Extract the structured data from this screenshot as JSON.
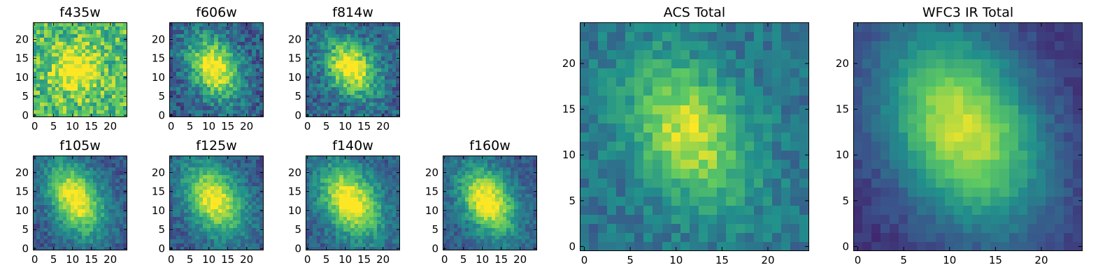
{
  "figure": {
    "background": "#ffffff",
    "colormap": [
      "#440154",
      "#3b528b",
      "#21918c",
      "#5ec962",
      "#fde725"
    ]
  },
  "chart_data": [
    {
      "type": "heatmap",
      "title": "f435w",
      "size": 25,
      "xticks": [
        0,
        5,
        10,
        15,
        20
      ],
      "yticks": [
        0,
        5,
        10,
        15,
        20
      ],
      "xlim": [
        -0.5,
        24.5
      ],
      "ylim": [
        -0.5,
        24.5
      ],
      "peak": [
        11,
        12
      ],
      "sigma": [
        4,
        4
      ],
      "rho": 0,
      "amp": 0.45,
      "bg": 0.7,
      "noise": 0.45,
      "seed": 11
    },
    {
      "type": "heatmap",
      "title": "f606w",
      "size": 25,
      "xticks": [
        0,
        5,
        10,
        15,
        20
      ],
      "yticks": [
        0,
        5,
        10,
        15,
        20
      ],
      "xlim": [
        -0.5,
        24.5
      ],
      "ylim": [
        -0.5,
        24.5
      ],
      "peak": [
        11.5,
        12.5
      ],
      "sigma": [
        4.5,
        5.5
      ],
      "rho": -0.3,
      "amp": 0.75,
      "bg": 0.3,
      "noise": 0.32,
      "seed": 23
    },
    {
      "type": "heatmap",
      "title": "f814w",
      "size": 25,
      "xticks": [
        0,
        5,
        10,
        15,
        20
      ],
      "yticks": [
        0,
        5,
        10,
        15,
        20
      ],
      "xlim": [
        -0.5,
        24.5
      ],
      "ylim": [
        -0.5,
        24.5
      ],
      "peak": [
        11.5,
        12.5
      ],
      "sigma": [
        4.5,
        5
      ],
      "rho": -0.3,
      "amp": 0.75,
      "bg": 0.32,
      "noise": 0.32,
      "seed": 37
    },
    {
      "type": "heatmap",
      "title": "f105w",
      "size": 25,
      "xticks": [
        0,
        5,
        10,
        15,
        20
      ],
      "yticks": [
        0,
        5,
        10,
        15,
        20
      ],
      "xlim": [
        -0.5,
        24.5
      ],
      "ylim": [
        -0.5,
        24.5
      ],
      "peak": [
        11,
        13
      ],
      "sigma": [
        5,
        6.5
      ],
      "rho": -0.35,
      "amp": 0.75,
      "bg": 0.28,
      "noise": 0.22,
      "seed": 41
    },
    {
      "type": "heatmap",
      "title": "f125w",
      "size": 25,
      "xticks": [
        0,
        5,
        10,
        15,
        20
      ],
      "yticks": [
        0,
        5,
        10,
        15,
        20
      ],
      "xlim": [
        -0.5,
        24.5
      ],
      "ylim": [
        -0.5,
        24.5
      ],
      "peak": [
        11.5,
        13
      ],
      "sigma": [
        5.5,
        6.5
      ],
      "rho": -0.35,
      "amp": 0.72,
      "bg": 0.28,
      "noise": 0.22,
      "seed": 53
    },
    {
      "type": "heatmap",
      "title": "f140w",
      "size": 25,
      "xticks": [
        0,
        5,
        10,
        15,
        20
      ],
      "yticks": [
        0,
        5,
        10,
        15,
        20
      ],
      "xlim": [
        -0.5,
        24.5
      ],
      "ylim": [
        -0.5,
        24.5
      ],
      "peak": [
        11.5,
        12.5
      ],
      "sigma": [
        5.5,
        6.5
      ],
      "rho": -0.35,
      "amp": 0.75,
      "bg": 0.3,
      "noise": 0.22,
      "seed": 67
    },
    {
      "type": "heatmap",
      "title": "f160w",
      "size": 25,
      "xticks": [
        0,
        5,
        10,
        15,
        20
      ],
      "yticks": [
        0,
        5,
        10,
        15,
        20
      ],
      "xlim": [
        -0.5,
        24.5
      ],
      "ylim": [
        -0.5,
        24.5
      ],
      "peak": [
        11.5,
        12.5
      ],
      "sigma": [
        5,
        6
      ],
      "rho": -0.35,
      "amp": 0.75,
      "bg": 0.3,
      "noise": 0.22,
      "seed": 71
    },
    {
      "type": "heatmap",
      "title": "ACS Total",
      "size": 25,
      "xticks": [
        0,
        5,
        10,
        15,
        20
      ],
      "yticks": [
        0,
        5,
        10,
        15,
        20
      ],
      "xlim": [
        -0.5,
        24.5
      ],
      "ylim": [
        -0.5,
        24.5
      ],
      "peak": [
        11.5,
        12.5
      ],
      "sigma": [
        4.5,
        5.5
      ],
      "rho": -0.3,
      "amp": 0.55,
      "bg": 0.38,
      "noise": 0.22,
      "seed": 83
    },
    {
      "type": "heatmap",
      "title": "WFC3 IR Total",
      "size": 25,
      "xticks": [
        0,
        5,
        10,
        15,
        20
      ],
      "yticks": [
        0,
        5,
        10,
        15,
        20
      ],
      "xlim": [
        -0.5,
        24.5
      ],
      "ylim": [
        -0.5,
        24.5
      ],
      "peak": [
        11.5,
        13
      ],
      "sigma": [
        6,
        7.5
      ],
      "rho": -0.3,
      "amp": 0.78,
      "bg": 0.15,
      "noise": 0.1,
      "seed": 97
    }
  ]
}
